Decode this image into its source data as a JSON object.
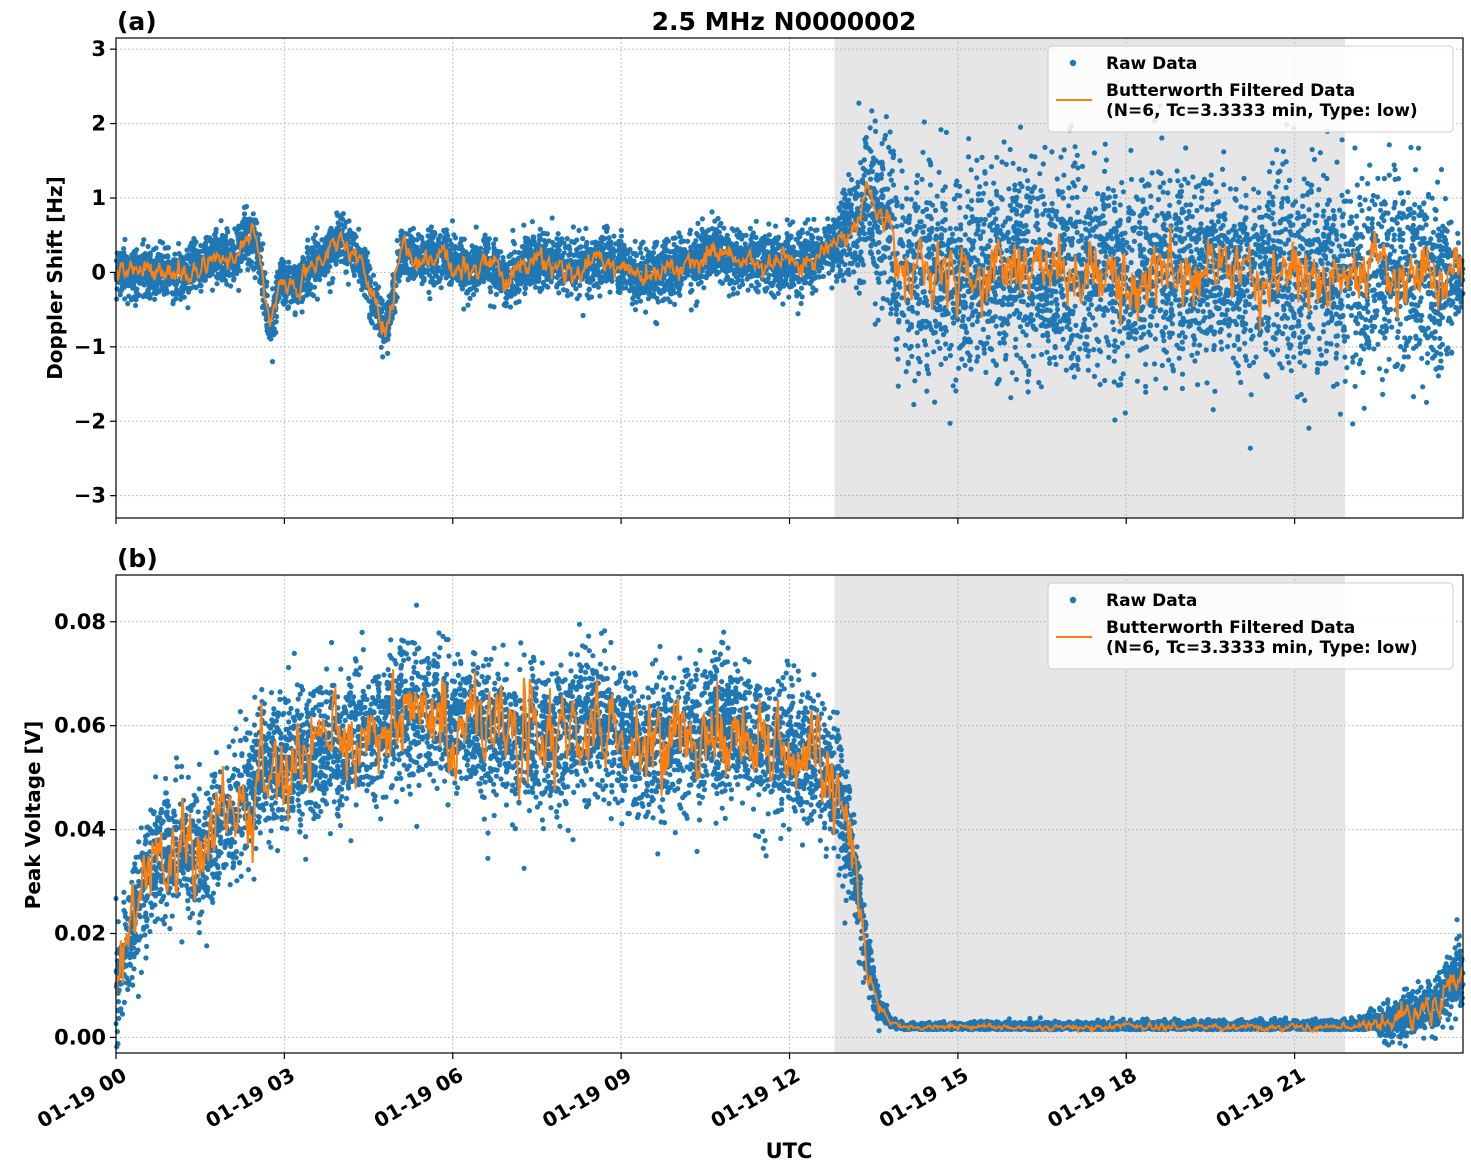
{
  "figure": {
    "title": "2.5 MHz N0000002",
    "xlabel": "UTC"
  },
  "colors": {
    "raw": "#1f77b4",
    "filtered": "#ff7f0e",
    "shade": "#e6e6e6",
    "grid": "#b0b0b0"
  },
  "chart_data": [
    {
      "type": "scatter",
      "panel_label": "(a)",
      "title": "2.5 MHz N0000002",
      "xlabel": "",
      "ylabel": "Doppler Shift [Hz]",
      "ylim": [
        -3.3,
        3.15
      ],
      "yticks": [
        -3,
        -2,
        -1,
        0,
        1,
        2,
        3
      ],
      "ytick_labels": [
        "−3",
        "−2",
        "−1",
        "0",
        "1",
        "2",
        "3"
      ],
      "xlim_hours": [
        0,
        24
      ],
      "xticks_hours": [
        0,
        3,
        6,
        9,
        12,
        15,
        18,
        21
      ],
      "xtick_labels": [
        "01-19 00",
        "01-19 03",
        "01-19 06",
        "01-19 09",
        "01-19 12",
        "01-19 15",
        "01-19 18",
        "01-19 21"
      ],
      "shaded_region_hours": [
        12.8,
        21.9
      ],
      "grid": true,
      "legend": {
        "placement": "top-right",
        "entries": [
          "Raw Data",
          "Butterworth Filtered Data",
          "(N=6, Tc=3.3333 min, Type: low)"
        ]
      },
      "series": [
        {
          "name": "Raw Data",
          "kind": "points",
          "spread_hours": [
            0,
            12.8,
            13.7,
            23.5,
            24
          ],
          "spread_values": [
            0.35,
            0.45,
            1.5,
            1.5,
            0.5
          ]
        },
        {
          "name": "Butterworth Filtered Data",
          "kind": "line",
          "x_hours": [
            0,
            0.5,
            1.0,
            1.5,
            1.8,
            2.1,
            2.3,
            2.5,
            2.75,
            2.9,
            3.2,
            3.5,
            3.8,
            4.0,
            4.2,
            4.4,
            4.6,
            4.8,
            5.1,
            5.4,
            5.8,
            6.2,
            6.6,
            7.0,
            7.4,
            7.8,
            8.2,
            8.6,
            9.0,
            9.4,
            9.8,
            10.2,
            10.6,
            11.0,
            11.4,
            11.8,
            12.2,
            12.6,
            12.9,
            13.2,
            13.4,
            13.6,
            13.75,
            13.9,
            14.2,
            15,
            16,
            17,
            18,
            19,
            20,
            21,
            22,
            23,
            23.5,
            24
          ],
          "y_values": [
            0,
            0.02,
            -0.02,
            0.05,
            0.25,
            0.15,
            0.5,
            0.4,
            -0.8,
            -0.1,
            -0.2,
            0.1,
            0.3,
            0.5,
            0.3,
            0.05,
            -0.4,
            -0.8,
            0.3,
            0.15,
            0.2,
            0.05,
            0.1,
            -0.1,
            0.2,
            0.1,
            0.05,
            0.15,
            0.1,
            -0.1,
            0.0,
            0.1,
            0.3,
            0.2,
            0.15,
            0.1,
            0.1,
            0.25,
            0.5,
            0.6,
            1.05,
            0.7,
            0.75,
            -0.05,
            0.1,
            -0.1,
            0.05,
            0.0,
            -0.05,
            0.05,
            0.0,
            0.0,
            -0.05,
            0.05,
            -0.1,
            -0.05
          ],
          "noise_hours": [
            0,
            13.7,
            13.8,
            23.5,
            24
          ],
          "noise_values": [
            0.08,
            0.08,
            0.2,
            0.2,
            0.1
          ]
        }
      ]
    },
    {
      "type": "scatter",
      "panel_label": "(b)",
      "xlabel": "UTC",
      "ylabel": "Peak Voltage [V]",
      "ylim": [
        -0.003,
        0.089
      ],
      "yticks": [
        0,
        0.02,
        0.04,
        0.06,
        0.08
      ],
      "ytick_labels": [
        "0.00",
        "0.02",
        "0.04",
        "0.06",
        "0.08"
      ],
      "xlim_hours": [
        0,
        24
      ],
      "xticks_hours": [
        0,
        3,
        6,
        9,
        12,
        15,
        18,
        21
      ],
      "xtick_labels": [
        "01-19 00",
        "01-19 03",
        "01-19 06",
        "01-19 09",
        "01-19 12",
        "01-19 15",
        "01-19 18",
        "01-19 21"
      ],
      "shaded_region_hours": [
        12.8,
        21.9
      ],
      "grid": true,
      "legend": {
        "placement": "top-right",
        "entries": [
          "Raw Data",
          "Butterworth Filtered Data",
          "(N=6, Tc=3.3333 min, Type: low)"
        ]
      },
      "series": [
        {
          "name": "Raw Data",
          "kind": "points",
          "spread_hours": [
            0,
            2.0,
            12.9,
            13.8,
            22.0,
            24
          ],
          "spread_values": [
            0.012,
            0.014,
            0.015,
            0.0008,
            0.0015,
            0.008
          ]
        },
        {
          "name": "Butterworth Filtered Data",
          "kind": "line",
          "x_hours": [
            0,
            0.3,
            0.6,
            1.0,
            1.5,
            2.0,
            2.3,
            2.6,
            3.0,
            3.5,
            4.0,
            4.5,
            5.0,
            5.5,
            6.0,
            6.5,
            7.0,
            7.5,
            8.0,
            8.5,
            9.0,
            9.5,
            10.0,
            10.5,
            11.0,
            11.5,
            12.0,
            12.5,
            12.9,
            13.2,
            13.4,
            13.6,
            13.8,
            14.0,
            15,
            16,
            17,
            18,
            19,
            20,
            21,
            21.9,
            22.5,
            23.0,
            23.5,
            24
          ],
          "y_values": [
            0.009,
            0.022,
            0.033,
            0.036,
            0.035,
            0.042,
            0.046,
            0.052,
            0.052,
            0.055,
            0.057,
            0.058,
            0.062,
            0.062,
            0.061,
            0.06,
            0.058,
            0.057,
            0.058,
            0.062,
            0.058,
            0.055,
            0.057,
            0.059,
            0.06,
            0.056,
            0.055,
            0.053,
            0.047,
            0.03,
            0.015,
            0.006,
            0.003,
            0.002,
            0.002,
            0.002,
            0.002,
            0.002,
            0.002,
            0.002,
            0.002,
            0.002,
            0.0025,
            0.004,
            0.006,
            0.013
          ],
          "noise_hours": [
            0,
            2.0,
            12.8,
            13.7,
            22.0,
            24
          ],
          "noise_values": [
            0.004,
            0.004,
            0.004,
            0.0002,
            0.0003,
            0.002
          ]
        }
      ]
    }
  ]
}
